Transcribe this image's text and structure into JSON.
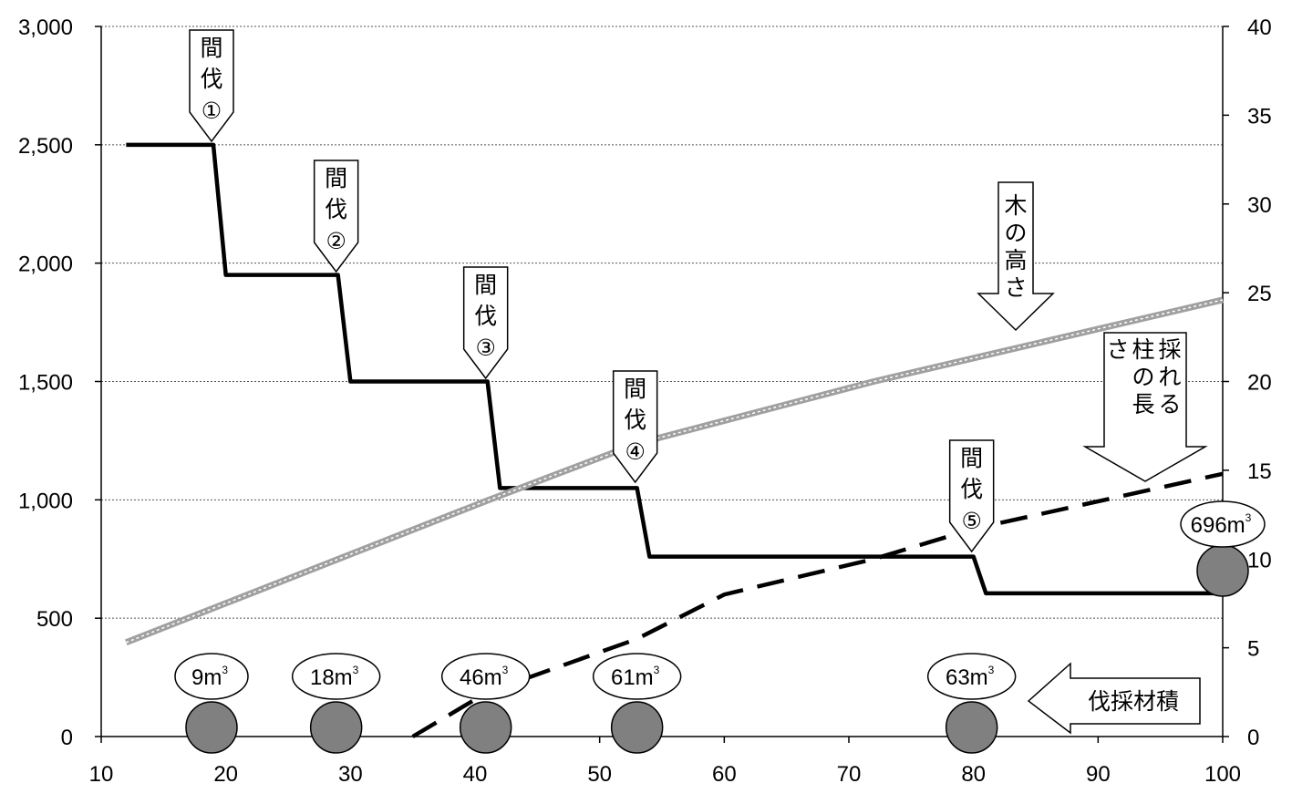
{
  "chart_data": {
    "type": "line",
    "x_axis": {
      "range": [
        10,
        100
      ],
      "ticks": [
        10,
        20,
        30,
        40,
        50,
        60,
        70,
        80,
        90,
        100
      ]
    },
    "y_left": {
      "range": [
        0,
        3000
      ],
      "ticks": [
        0,
        500,
        1000,
        1500,
        2000,
        2500,
        3000
      ],
      "tick_labels": [
        "0",
        "500",
        "1,000",
        "1,500",
        "2,000",
        "2,500",
        "3,000"
      ]
    },
    "y_right": {
      "range": [
        0,
        40
      ],
      "ticks": [
        0,
        5,
        10,
        15,
        20,
        25,
        30,
        35,
        40
      ],
      "tick_labels": [
        "0",
        "5",
        "10",
        "15",
        "20",
        "25",
        "30",
        "35",
        "40"
      ]
    },
    "grid": "horizontal-dotted",
    "series": [
      {
        "style": "solid-black-thick",
        "axis": "left",
        "points": [
          [
            12,
            2500
          ],
          [
            19,
            2500
          ],
          [
            20,
            1950
          ],
          [
            29,
            1950
          ],
          [
            30,
            1500
          ],
          [
            41,
            1500
          ],
          [
            42,
            1050
          ],
          [
            53,
            1050
          ],
          [
            54,
            760
          ],
          [
            80,
            760
          ],
          [
            81,
            605
          ],
          [
            100,
            605
          ]
        ]
      },
      {
        "style": "gray-band",
        "axis": "right",
        "label": "木の高さ",
        "points": [
          [
            12,
            5.3
          ],
          [
            41,
            13.3
          ],
          [
            53,
            16.5
          ],
          [
            72,
            20.0
          ],
          [
            100,
            24.6
          ]
        ]
      },
      {
        "style": "dashed-black",
        "axis": "right",
        "label": "採れる柱の長さ",
        "points": [
          [
            35,
            0
          ],
          [
            41,
            2.5
          ],
          [
            53,
            5.5
          ],
          [
            60,
            8.0
          ],
          [
            72,
            10.0
          ],
          [
            80,
            11.7
          ],
          [
            100,
            14.8
          ]
        ]
      }
    ],
    "thinnings": [
      {
        "label_line1": "間",
        "label_line2": "伐",
        "number": "①",
        "x": 19
      },
      {
        "label_line1": "間",
        "label_line2": "伐",
        "number": "②",
        "x": 29
      },
      {
        "label_line1": "間",
        "label_line2": "伐",
        "number": "③",
        "x": 41
      },
      {
        "label_line1": "間",
        "label_line2": "伐",
        "number": "④",
        "x": 53
      },
      {
        "label_line1": "間",
        "label_line2": "伐",
        "number": "⑤",
        "x": 80
      }
    ],
    "harvest_volumes": [
      {
        "x": 19,
        "volume": "9",
        "unit": "m",
        "superscript": "3"
      },
      {
        "x": 29,
        "volume": "18",
        "unit": "m",
        "superscript": "3"
      },
      {
        "x": 41,
        "volume": "46",
        "unit": "m",
        "superscript": "3"
      },
      {
        "x": 53,
        "volume": "61",
        "unit": "m",
        "superscript": "3"
      },
      {
        "x": 80,
        "volume": "63",
        "unit": "m",
        "superscript": "3"
      },
      {
        "x": 100,
        "volume": "696",
        "unit": "m",
        "superscript": "3"
      }
    ],
    "annotations": {
      "tree_height": [
        "木",
        "の",
        "高",
        "さ"
      ],
      "pillar_length_columns": [
        [
          "採",
          "れ",
          "る"
        ],
        [
          "柱",
          "の",
          "長"
        ],
        [
          "さ"
        ]
      ],
      "harvest_volume": "伐採材積"
    },
    "colors": {
      "main_line": "#000000",
      "height_band": "#a0a0a0",
      "circle_fill": "#808080",
      "grid": "#555555"
    }
  }
}
